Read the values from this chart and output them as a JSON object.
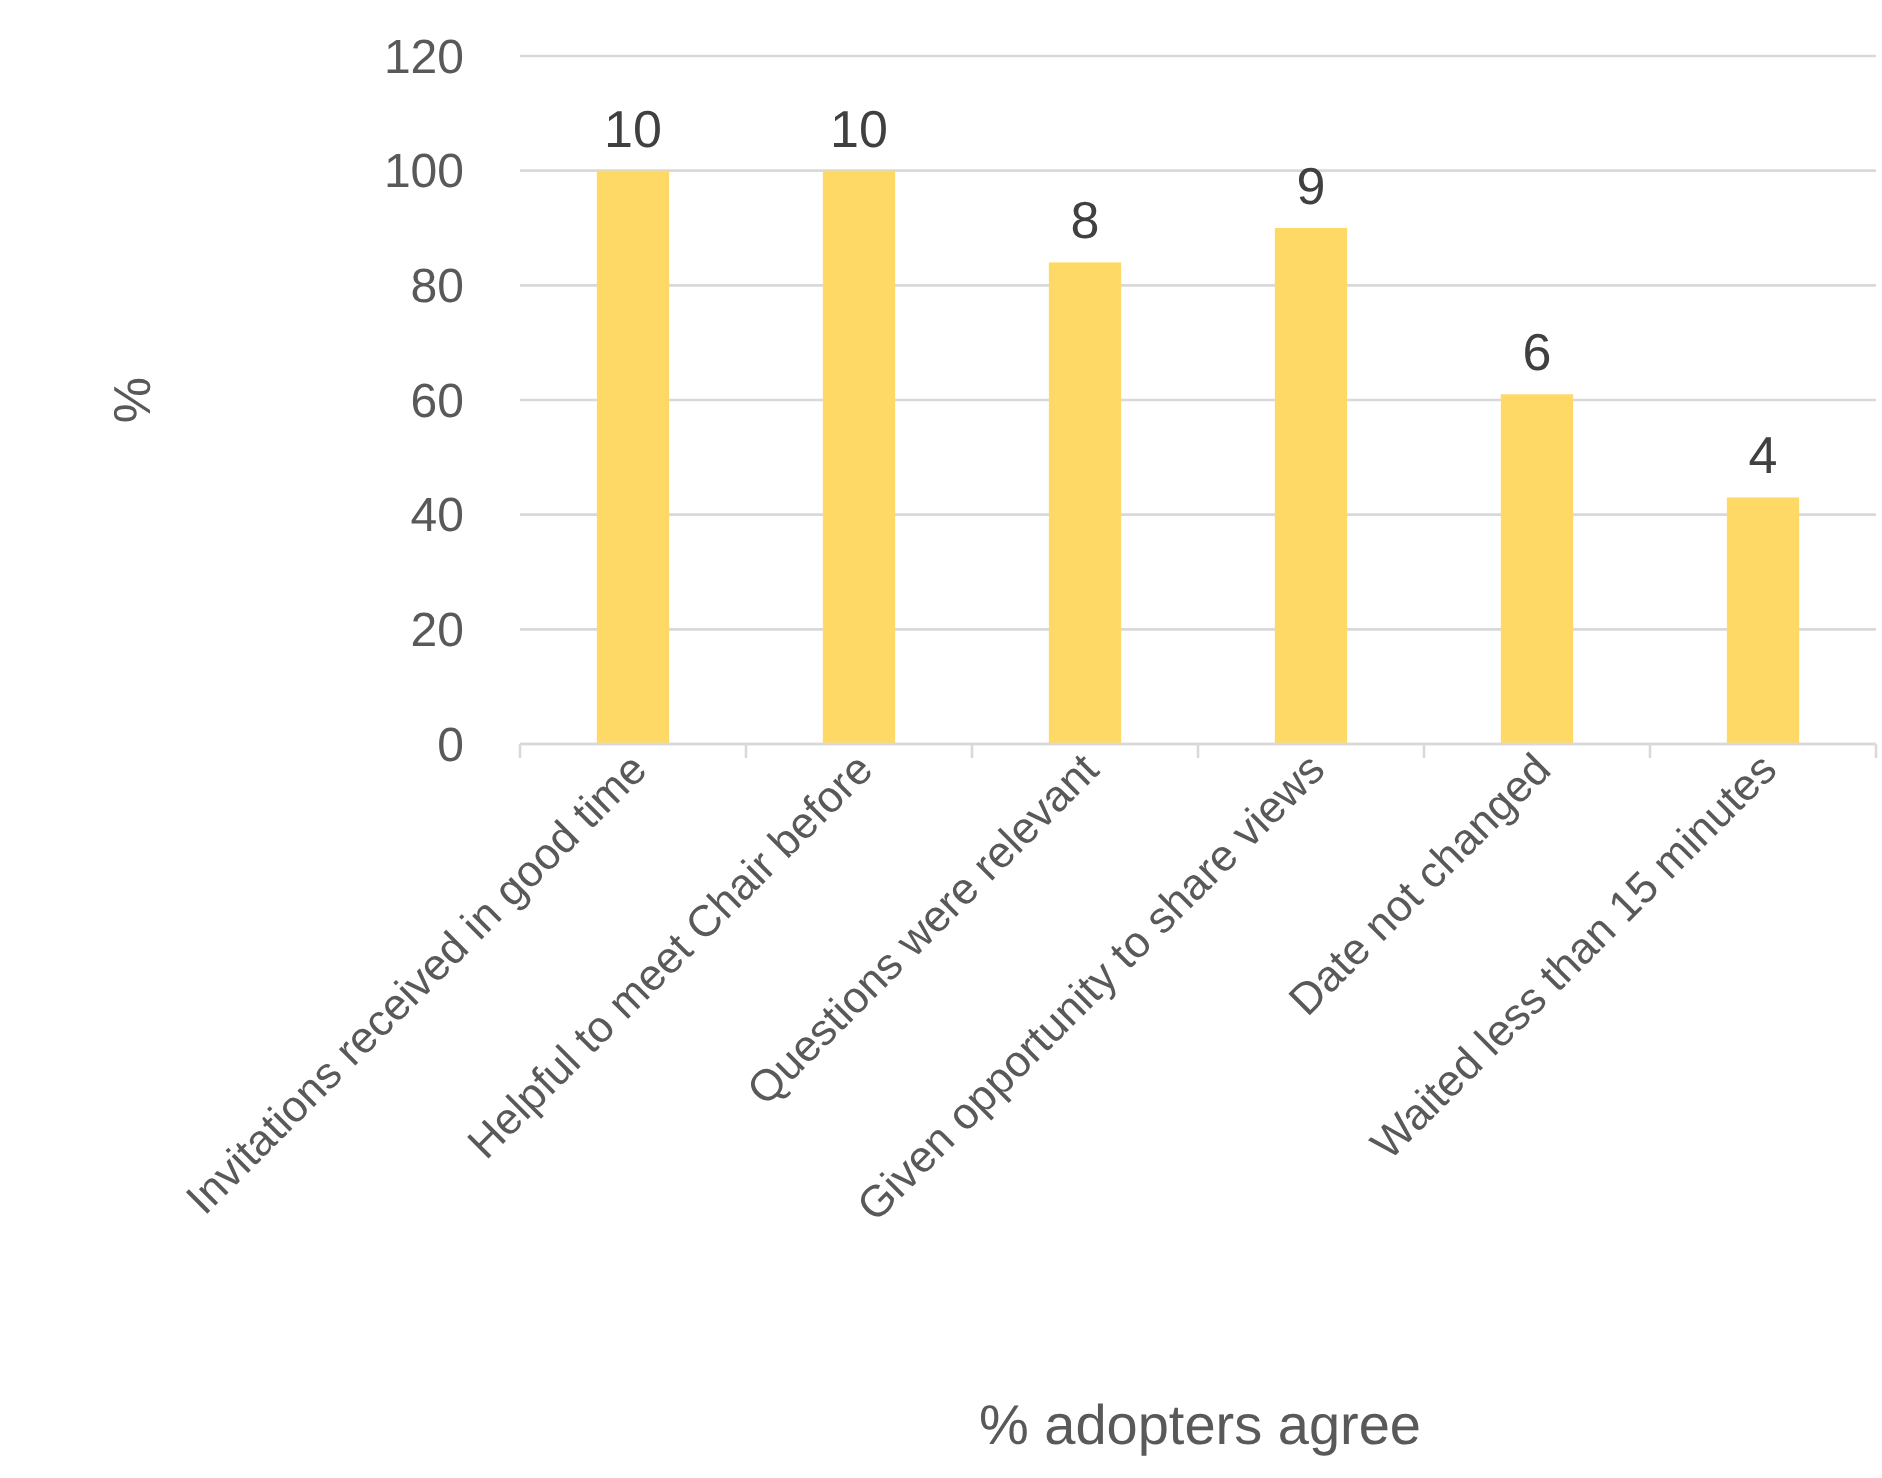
{
  "chart_data": {
    "type": "bar",
    "xlabel": "% adopters agree",
    "ylabel": "%",
    "categories": [
      "Invitations received in good time",
      "Helpful to meet Chair before",
      "Questions were relevant",
      "Given opportunity to share views",
      "Date not changed",
      "Waited less than 15 minutes"
    ],
    "values": [
      100,
      100,
      84,
      90,
      61,
      43
    ],
    "annotations": [
      {
        "text": "10",
        "x": "Invitations received in good time",
        "y": 100
      },
      {
        "text": "10",
        "x": "Helpful to meet Chair before",
        "y": 100
      },
      {
        "text": "8",
        "x": "Questions were relevant",
        "y": 84
      },
      {
        "text": "9",
        "x": "Given opportunity to share views",
        "y": 90
      },
      {
        "text": "6",
        "x": "Date not changed",
        "y": 61
      },
      {
        "text": "4",
        "x": "Waited less than 15 minutes",
        "y": 43
      }
    ],
    "color": "#ffd966",
    "ylim": [
      0,
      120
    ],
    "yticks": [
      0,
      20,
      40,
      60,
      80,
      100,
      120
    ],
    "grid": "y"
  }
}
